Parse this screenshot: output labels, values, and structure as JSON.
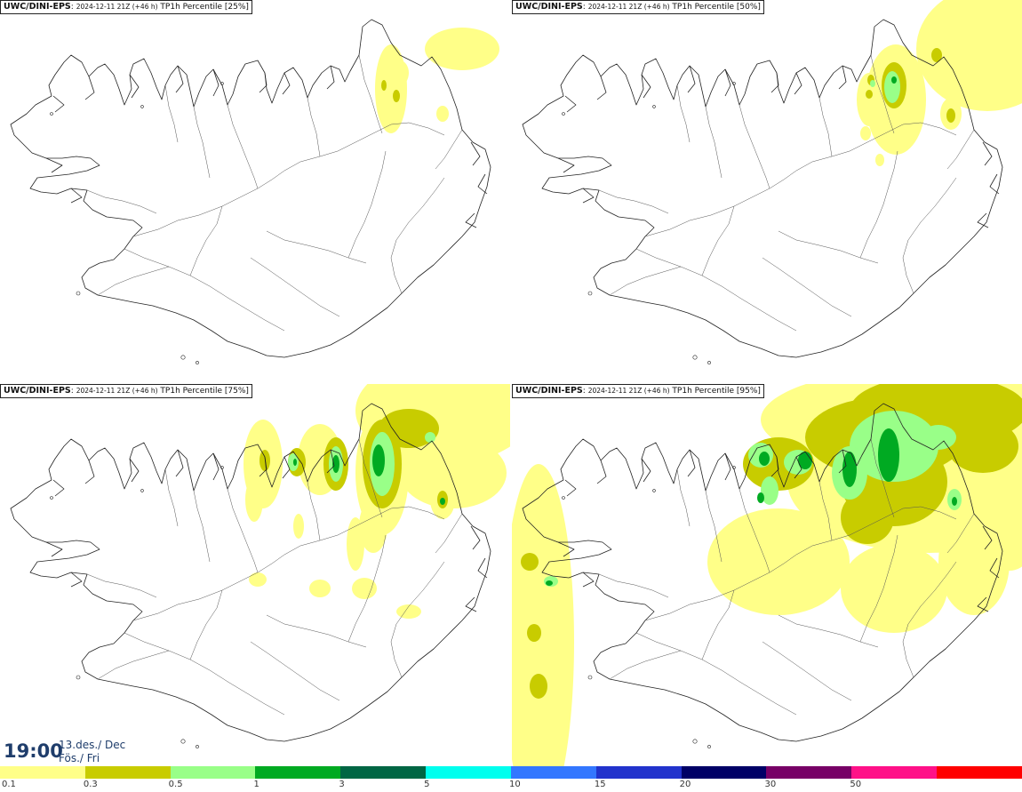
{
  "panels": [
    {
      "model": "UWC/DINI-EPS",
      "run": "2024-12-11 21Z (+46 h)",
      "field": "TP1h Percentile [25%]",
      "level": 1
    },
    {
      "model": "UWC/DINI-EPS",
      "run": "2024-12-11 21Z (+46 h)",
      "field": "TP1h Percentile [50%]",
      "level": 2
    },
    {
      "model": "UWC/DINI-EPS",
      "run": "2024-12-11 21Z (+46 h)",
      "field": "TP1h Percentile [75%]",
      "level": 3
    },
    {
      "model": "UWC/DINI-EPS",
      "run": "2024-12-11 21Z (+46 h)",
      "field": "TP1h Percentile [95%]",
      "level": 4
    }
  ],
  "valid_time": {
    "time": "19:00",
    "date": "13.des./ Dec",
    "weekday": "Fös./ Fri"
  },
  "legend": {
    "colors": [
      "#ffff88",
      "#c8cc00",
      "#99ff88",
      "#00aa22",
      "#006644",
      "#00ffee",
      "#3377ff",
      "#2233cc",
      "#000066",
      "#770066",
      "#ff1188",
      "#ff0000"
    ],
    "labels": [
      "0.1",
      "0.3",
      "0.5",
      "1",
      "3",
      "5",
      "10",
      "15",
      "20",
      "30",
      "50"
    ]
  }
}
